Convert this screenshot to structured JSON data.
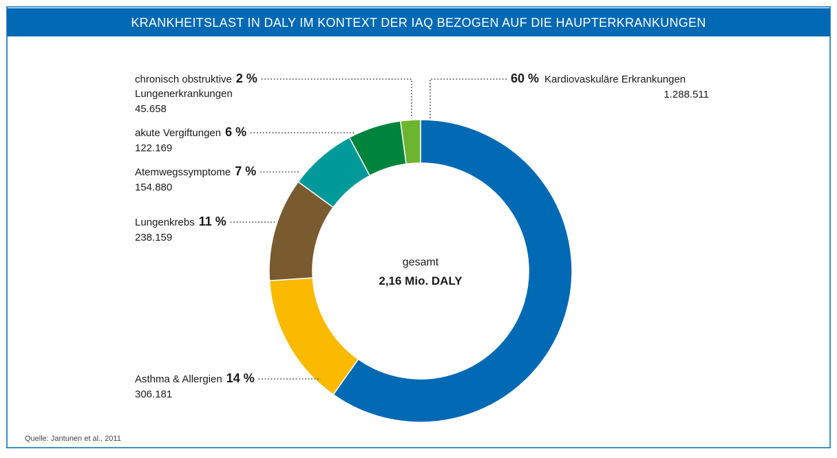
{
  "chart_data": {
    "type": "donut",
    "title": "KRANKHEITSLAST IN DALY IM KONTEXT DER IAQ BEZOGEN AUF DIE HAUPTERKRANKUNGEN",
    "categories": [
      "Kardiovaskuläre Erkrankungen",
      "Asthma & Allergien",
      "Lungenkrebs",
      "Atemwegssymptome",
      "akute Vergiftungen",
      "chronisch obstruktive Lungenerkrankungen"
    ],
    "values": [
      1288511,
      306181,
      238159,
      154880,
      122169,
      45658
    ],
    "value_labels": [
      "1.288.511",
      "306.181",
      "238.159",
      "154.880",
      "122.169",
      "45.658"
    ],
    "percent": [
      60,
      14,
      11,
      7,
      6,
      2
    ],
    "percent_labels": [
      "60 %",
      "14 %",
      "11 %",
      "7 %",
      "6 %",
      "2 %"
    ],
    "colors": [
      "#0069b4",
      "#fbba00",
      "#7a5a2f",
      "#009a9b",
      "#00843d",
      "#6db52f"
    ],
    "center_label": [
      "gesamt",
      "2,16 Mio. DALY"
    ],
    "source": "Quelle: Jantunen et al., 2011"
  }
}
